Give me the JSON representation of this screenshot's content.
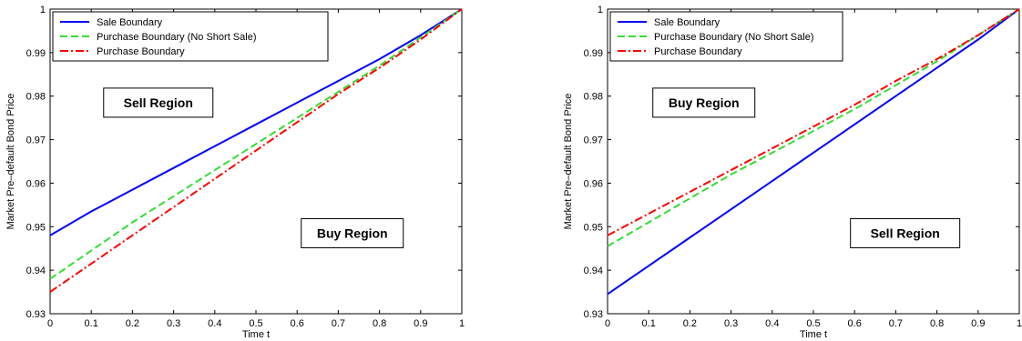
{
  "chart_data": [
    {
      "type": "line",
      "title": "",
      "xlabel": "Time t",
      "ylabel": "Market Pre–default Bond Price",
      "xlim": [
        0,
        1
      ],
      "ylim": [
        0.93,
        1
      ],
      "xticks": [
        "0",
        "0.1",
        "0.2",
        "0.3",
        "0.4",
        "0.5",
        "0.6",
        "0.7",
        "0.8",
        "0.9",
        "1"
      ],
      "yticks": [
        "0.93",
        "0.94",
        "0.95",
        "0.96",
        "0.97",
        "0.98",
        "0.99",
        "1"
      ],
      "grid": false,
      "legend_position": "top-left",
      "series": [
        {
          "name": "Sale Boundary",
          "color": "#0000ff",
          "style": "solid",
          "x": [
            0,
            0.1,
            0.2,
            0.3,
            0.4,
            0.5,
            0.6,
            0.7,
            0.8,
            0.9,
            1
          ],
          "y": [
            0.948,
            0.9535,
            0.9585,
            0.9635,
            0.9685,
            0.9735,
            0.9785,
            0.9835,
            0.9885,
            0.994,
            1.0
          ]
        },
        {
          "name": "Purchase Boundary (No Short Sale)",
          "color": "#33dd33",
          "style": "dashed",
          "x": [
            0,
            0.1,
            0.2,
            0.3,
            0.4,
            0.5,
            0.6,
            0.7,
            0.8,
            0.9,
            1
          ],
          "y": [
            0.938,
            0.9445,
            0.951,
            0.957,
            0.963,
            0.969,
            0.975,
            0.981,
            0.987,
            0.9935,
            1.0
          ]
        },
        {
          "name": "Purchase Boundary",
          "color": "#ff0000",
          "style": "dashdot",
          "x": [
            0,
            0.1,
            0.2,
            0.3,
            0.4,
            0.5,
            0.6,
            0.7,
            0.8,
            0.9,
            1
          ],
          "y": [
            0.935,
            0.9415,
            0.948,
            0.9545,
            0.961,
            0.9675,
            0.974,
            0.9805,
            0.9865,
            0.993,
            1.0
          ]
        }
      ],
      "annotations": [
        {
          "text": "Sell Region",
          "x": 0.13,
          "y": 0.9785
        },
        {
          "text": "Buy Region",
          "x": 0.61,
          "y": 0.9485
        }
      ]
    },
    {
      "type": "line",
      "title": "",
      "xlabel": "Time t",
      "ylabel": "Market Pre–default Bond Price",
      "xlim": [
        0,
        1
      ],
      "ylim": [
        0.93,
        1
      ],
      "xticks": [
        "0",
        "0.1",
        "0.2",
        "0.3",
        "0.4",
        "0.5",
        "0.6",
        "0.7",
        "0.8",
        "0.9",
        "1"
      ],
      "yticks": [
        "0.93",
        "0.94",
        "0.95",
        "0.96",
        "0.97",
        "0.98",
        "0.99",
        "1"
      ],
      "grid": false,
      "legend_position": "top-left",
      "series": [
        {
          "name": "Sale Boundary",
          "color": "#0000ff",
          "style": "solid",
          "x": [
            0,
            0.1,
            0.2,
            0.3,
            0.4,
            0.5,
            0.6,
            0.7,
            0.8,
            0.9,
            1
          ],
          "y": [
            0.9345,
            0.941,
            0.9475,
            0.954,
            0.9605,
            0.967,
            0.9735,
            0.98,
            0.9865,
            0.993,
            1.0
          ]
        },
        {
          "name": "Purchase Boundary (No Short Sale)",
          "color": "#33dd33",
          "style": "dashed",
          "x": [
            0,
            0.1,
            0.2,
            0.3,
            0.4,
            0.5,
            0.6,
            0.7,
            0.8,
            0.9,
            1
          ],
          "y": [
            0.9455,
            0.951,
            0.9565,
            0.962,
            0.967,
            0.972,
            0.977,
            0.9825,
            0.988,
            0.994,
            1.0
          ]
        },
        {
          "name": "Purchase Boundary",
          "color": "#ff0000",
          "style": "dashdot",
          "x": [
            0,
            0.1,
            0.2,
            0.3,
            0.4,
            0.5,
            0.6,
            0.7,
            0.8,
            0.9,
            1
          ],
          "y": [
            0.948,
            0.953,
            0.958,
            0.963,
            0.968,
            0.973,
            0.978,
            0.9835,
            0.9885,
            0.994,
            1.0
          ]
        }
      ],
      "annotations": [
        {
          "text": "Buy Region",
          "x": 0.11,
          "y": 0.9785
        },
        {
          "text": "Sell Region",
          "x": 0.59,
          "y": 0.9485
        }
      ]
    }
  ]
}
